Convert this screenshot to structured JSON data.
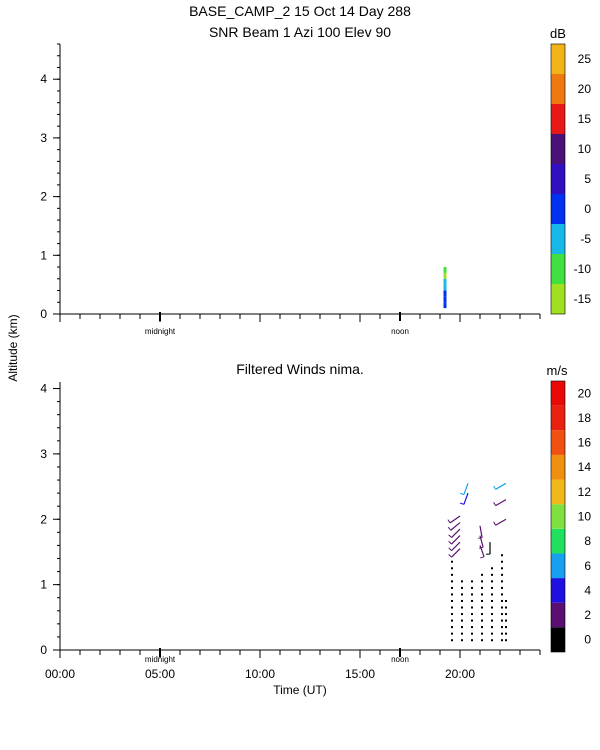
{
  "title": {
    "line1": "BASE_CAMP_2  15 Oct 14 Day 288",
    "line2": "SNR Beam  1 Azi 100 Elev 90"
  },
  "ylabel": "Altitude (km)",
  "xlabel": "Time (UT)",
  "markers": {
    "midnight": "midnight",
    "noon": "noon"
  },
  "snr_panel": {
    "unit": "dB",
    "ylim": [
      0,
      4.6
    ],
    "yticks": [
      "0",
      "1",
      "2",
      "3",
      "4"
    ],
    "colorbar": {
      "labels": [
        "-15",
        "-10",
        "-5",
        "0",
        "5",
        "10",
        "15",
        "20",
        "25"
      ],
      "colors": [
        "#a0e020",
        "#40e040",
        "#18b8e8",
        "#0030f0",
        "#3010c0",
        "#4a1278",
        "#e81818",
        "#f07810",
        "#f0b418"
      ]
    }
  },
  "wind_panel": {
    "title": "Filtered Winds nima.",
    "unit": "m/s",
    "ylim": [
      0,
      4.1
    ],
    "yticks": [
      "0",
      "1",
      "2",
      "3",
      "4"
    ],
    "colorbar": {
      "labels": [
        "0",
        "2",
        "4",
        "6",
        "8",
        "10",
        "12",
        "14",
        "16",
        "18",
        "20"
      ],
      "colors": [
        "#000000",
        "#5a1070",
        "#2010e0",
        "#18a0f0",
        "#20e060",
        "#80e040",
        "#f0b818",
        "#f09010",
        "#f05010",
        "#e82010",
        "#e80808"
      ]
    }
  },
  "chart_data": [
    {
      "type": "heatmap",
      "title": "SNR Beam  1 Azi 100 Elev 90",
      "ylabel": "Altitude (km)",
      "x_axis": "time (UT, hours)",
      "ylim": [
        0,
        4.6
      ],
      "colorbar_unit": "dB",
      "colorbar_range": [
        -15,
        29
      ],
      "points": [
        {
          "x": 19.25,
          "y": 0.2,
          "dB": 0
        },
        {
          "x": 19.25,
          "y": 0.3,
          "dB": 2
        },
        {
          "x": 19.25,
          "y": 0.4,
          "dB": 0
        },
        {
          "x": 19.25,
          "y": 0.5,
          "dB": -3
        },
        {
          "x": 19.25,
          "y": 0.6,
          "dB": -5
        },
        {
          "x": 19.25,
          "y": 0.7,
          "dB": -12
        },
        {
          "x": 19.25,
          "y": 0.8,
          "dB": -10
        }
      ]
    },
    {
      "type": "scatter",
      "title": "Filtered Winds nima.",
      "xlabel": "Time (UT)",
      "ylabel": "Altitude (km)",
      "xlim": [
        0,
        24
      ],
      "ylim": [
        0,
        4.1
      ],
      "x_tick_labels": [
        "00:00",
        "05:00",
        "10:00",
        "15:00",
        "20:00"
      ],
      "colorbar_unit": "m/s",
      "colorbar_range": [
        0,
        21
      ],
      "wind_barbs": [
        {
          "x": 20.0,
          "y": 1.85,
          "speed": 3,
          "dir_deg": 225
        },
        {
          "x": 20.0,
          "y": 1.75,
          "speed": 3,
          "dir_deg": 225
        },
        {
          "x": 20.0,
          "y": 1.65,
          "speed": 3,
          "dir_deg": 225
        },
        {
          "x": 20.0,
          "y": 1.55,
          "speed": 3,
          "dir_deg": 225
        },
        {
          "x": 20.0,
          "y": 1.95,
          "speed": 3,
          "dir_deg": 230
        },
        {
          "x": 20.0,
          "y": 2.05,
          "speed": 3,
          "dir_deg": 235
        },
        {
          "x": 20.4,
          "y": 2.4,
          "speed": 5,
          "dir_deg": 200
        },
        {
          "x": 20.4,
          "y": 2.55,
          "speed": 6,
          "dir_deg": 200
        },
        {
          "x": 21.0,
          "y": 1.6,
          "speed": 3,
          "dir_deg": 160
        },
        {
          "x": 21.0,
          "y": 1.75,
          "speed": 3,
          "dir_deg": 165
        },
        {
          "x": 21.0,
          "y": 1.9,
          "speed": 3,
          "dir_deg": 170
        },
        {
          "x": 21.5,
          "y": 1.65,
          "speed": 1,
          "dir_deg": 180
        },
        {
          "x": 22.3,
          "y": 2.0,
          "speed": 3,
          "dir_deg": 240
        },
        {
          "x": 22.3,
          "y": 2.3,
          "speed": 3,
          "dir_deg": 240
        },
        {
          "x": 22.3,
          "y": 2.55,
          "speed": 6,
          "dir_deg": 240
        }
      ],
      "calm_points": {
        "columns": [
          {
            "x": 19.6,
            "top": 1.35
          },
          {
            "x": 20.1,
            "top": 1.1
          },
          {
            "x": 20.6,
            "top": 1.05
          },
          {
            "x": 21.1,
            "top": 1.15
          },
          {
            "x": 21.6,
            "top": 1.25
          },
          {
            "x": 22.1,
            "top": 1.45
          },
          {
            "x": 22.3,
            "top": 0.8
          }
        ],
        "bottom": 0.15,
        "spacing": 0.1
      }
    }
  ]
}
